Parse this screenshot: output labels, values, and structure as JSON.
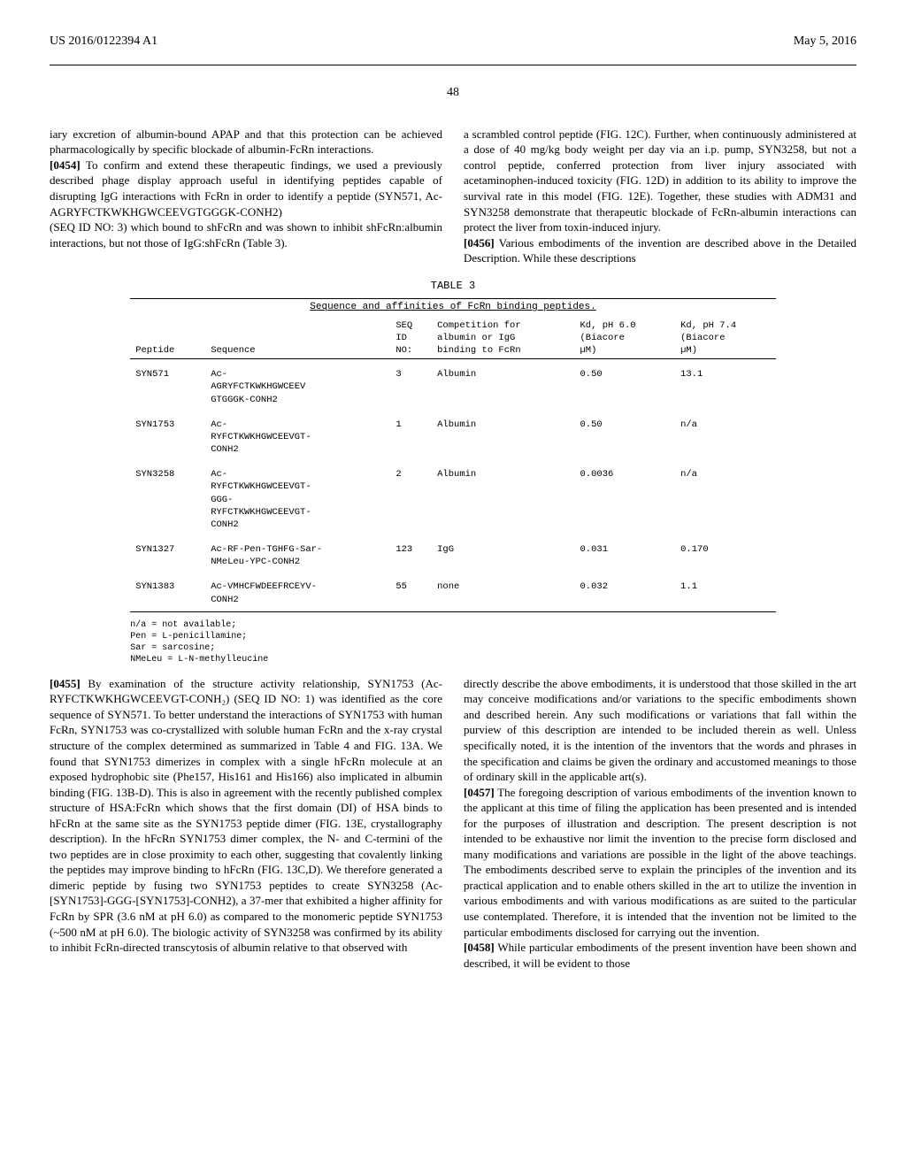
{
  "header": {
    "pub_number": "US 2016/0122394 A1",
    "date": "May 5, 2016",
    "page": "48"
  },
  "top_left": {
    "p1": "iary excretion of albumin-bound APAP and that this protection can be achieved pharmacologically by specific blockade of albumin-FcRn interactions.",
    "p2_num": "[0454]",
    "p2": "  To confirm and extend these therapeutic findings, we used a previously described phage display approach useful in identifying peptides capable of disrupting IgG interactions with FcRn in order to identify a peptide (SYN571, Ac-AGRYFCTKWKHGWCEEVGTGGGK-CONH2)",
    "p3": "(SEQ ID NO: 3) which bound to shFcRn and was shown to inhibit shFcRn:albumin interactions, but not those of IgG:shFcRn (Table 3)."
  },
  "top_right": {
    "p1": "a scrambled control peptide (FIG. 12C). Further, when continuously administered at a dose of 40 mg/kg body weight per day via an i.p. pump, SYN3258, but not a control peptide, conferred protection from liver injury associated with acetaminophen-induced toxicity (FIG. 12D) in addition to its ability to improve the survival rate in this model (FIG. 12E). Together, these studies with ADM31 and SYN3258 demonstrate that therapeutic blockade of FcRn-albumin interactions can protect the liver from toxin-induced injury.",
    "p2_num": "[0456]",
    "p2": "  Various embodiments of the invention are described above in the Detailed Description. While these descriptions"
  },
  "table": {
    "label": "TABLE 3",
    "title": "Sequence and affinities of FcRn binding peptides.",
    "headers": {
      "h1": "Peptide",
      "h2": "Sequence",
      "h3_l1": "SEQ",
      "h3_l2": "ID",
      "h3_l3": "NO:",
      "h4_l1": "Competition for",
      "h4_l2": "albumin or IgG",
      "h4_l3": "binding to FcRn",
      "h5_l1": "Kd, pH 6.0",
      "h5_l2": "(Biacore",
      "h5_l3": "µM)",
      "h6_l1": "Kd, pH 7.4",
      "h6_l2": "(Biacore",
      "h6_l3": "µM)"
    },
    "rows": [
      {
        "peptide": "SYN571",
        "seq": "Ac-\nAGRYFCTKWKHGWCEEV\nGTGGGK-CONH2",
        "seqid": "3",
        "comp": "Albumin",
        "kd60": "0.50",
        "kd74": "13.1"
      },
      {
        "peptide": "SYN1753",
        "seq": "Ac-\nRYFCTKWKHGWCEEVGT-\nCONH2",
        "seqid": "1",
        "comp": "Albumin",
        "kd60": "0.50",
        "kd74": "n/a"
      },
      {
        "peptide": "SYN3258",
        "seq": "Ac-\nRYFCTKWKHGWCEEVGT-\nGGG-\nRYFCTKWKHGWCEEVGT-\nCONH2",
        "seqid": "2",
        "comp": "Albumin",
        "kd60": "0.0036",
        "kd74": "n/a"
      },
      {
        "peptide": "SYN1327",
        "seq": "Ac-RF-Pen-TGHFG-Sar-\nNMeLeu-YPC-CONH2",
        "seqid": "123",
        "comp": "IgG",
        "kd60": "0.031",
        "kd74": "0.170"
      },
      {
        "peptide": "SYN1383",
        "seq": "Ac-VMHCFWDEEFRCEYV-\nCONH2",
        "seqid": "55",
        "comp": "none",
        "kd60": "0.032",
        "kd74": "1.1"
      }
    ],
    "footer": {
      "l1": "n/a = not available;",
      "l2": "Pen = L-penicillamine;",
      "l3": "Sar = sarcosine;",
      "l4": "NMeLeu = L-N-methylleucine"
    }
  },
  "bottom_left": {
    "p1_num": "[0455]",
    "p1": "  By examination of the structure activity relationship, SYN1753 (Ac-RYFCTKWKHGWCEEVGT-CONH₂) (SEQ ID NO: 1) was identified as the core sequence of SYN571. To better understand the interactions of SYN1753 with human FcRn, SYN1753 was co-crystallized with soluble human FcRn and the x-ray crystal structure of the complex determined as summarized in Table 4 and FIG. 13A. We found that SYN1753 dimerizes in complex with a single hFcRn molecule at an exposed hydrophobic site (Phe157, His161 and His166) also implicated in albumin binding (FIG. 13B-D). This is also in agreement with the recently published complex structure of HSA:FcRn which shows that the first domain (DI) of HSA binds to hFcRn at the same site as the SYN1753 peptide dimer (FIG. 13E, crystallography description). In the hFcRn SYN1753 dimer complex, the N- and C-termini of the two peptides are in close proximity to each other, suggesting that covalently linking the peptides may improve binding to hFcRn (FIG. 13C,D). We therefore generated a dimeric peptide by fusing two SYN1753 peptides to create SYN3258 (Ac-[SYN1753]-GGG-[SYN1753]-CONH2), a 37-mer that exhibited a higher affinity for FcRn by SPR (3.6 nM at pH 6.0) as compared to the monomeric peptide SYN1753 (~500 nM at pH 6.0). The biologic activity of SYN3258 was confirmed by its ability to inhibit FcRn-directed transcytosis of albumin relative to that observed with"
  },
  "bottom_right": {
    "p1": "directly describe the above embodiments, it is understood that those skilled in the art may conceive modifications and/or variations to the specific embodiments shown and described herein. Any such modifications or variations that fall within the purview of this description are intended to be included therein as well. Unless specifically noted, it is the intention of the inventors that the words and phrases in the specification and claims be given the ordinary and accustomed meanings to those of ordinary skill in the applicable art(s).",
    "p2_num": "[0457]",
    "p2": "  The foregoing description of various embodiments of the invention known to the applicant at this time of filing the application has been presented and is intended for the purposes of illustration and description. The present description is not intended to be exhaustive nor limit the invention to the precise form disclosed and many modifications and variations are possible in the light of the above teachings. The embodiments described serve to explain the principles of the invention and its practical application and to enable others skilled in the art to utilize the invention in various embodiments and with various modifications as are suited to the particular use contemplated. Therefore, it is intended that the invention not be limited to the particular embodiments disclosed for carrying out the invention.",
    "p3_num": "[0458]",
    "p3": "  While particular embodiments of the present invention have been shown and described, it will be evident to those"
  }
}
